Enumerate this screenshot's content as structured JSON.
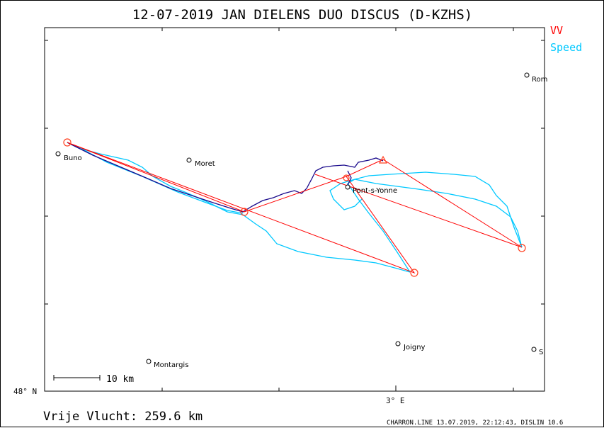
{
  "title": "12-07-2019    JAN DIELENS    DUO DISCUS (D-KZHS)",
  "legend": [
    {
      "label": "VV",
      "color": "#ff0000"
    },
    {
      "label": "Speed",
      "color": "#00c8ff"
    }
  ],
  "axes": {
    "lat_label": "48° N",
    "lon_label": "3° E"
  },
  "scale_label": "10 km",
  "distance_label": "Vrije Vlucht:  259.6 km",
  "footer": "CHARRON.LINE 13.07.2019, 22:12:43, DISLIN 10.6",
  "towns": [
    "Buno",
    "Moret",
    "Pont-s-Yonne",
    "Rom",
    "Joigny",
    "Montargis",
    "S"
  ],
  "colors": {
    "task": "#ff0000",
    "track_speed": "#00c8ff",
    "track_vv": "#1a0a8c"
  }
}
